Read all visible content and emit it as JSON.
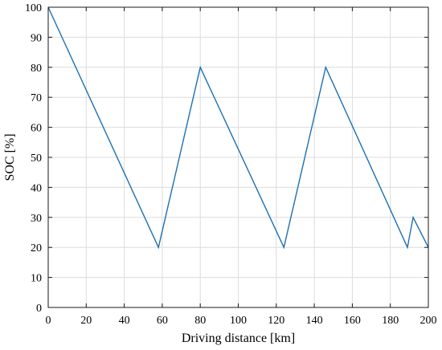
{
  "chart_data": {
    "type": "line",
    "title": "",
    "xlabel": "Driving distance [km]",
    "ylabel": "SOC [%]",
    "xlim": [
      0,
      200
    ],
    "ylim": [
      0,
      100
    ],
    "xticks": [
      0,
      20,
      40,
      60,
      80,
      100,
      120,
      140,
      160,
      180,
      200
    ],
    "yticks": [
      0,
      10,
      20,
      30,
      40,
      50,
      60,
      70,
      80,
      90,
      100
    ],
    "grid": true,
    "series": [
      {
        "color": "#1f6fb2",
        "x": [
          0,
          58,
          80,
          124,
          146,
          189,
          192,
          200
        ],
        "y": [
          100,
          20,
          80,
          20,
          80,
          20,
          30,
          20
        ]
      }
    ]
  }
}
